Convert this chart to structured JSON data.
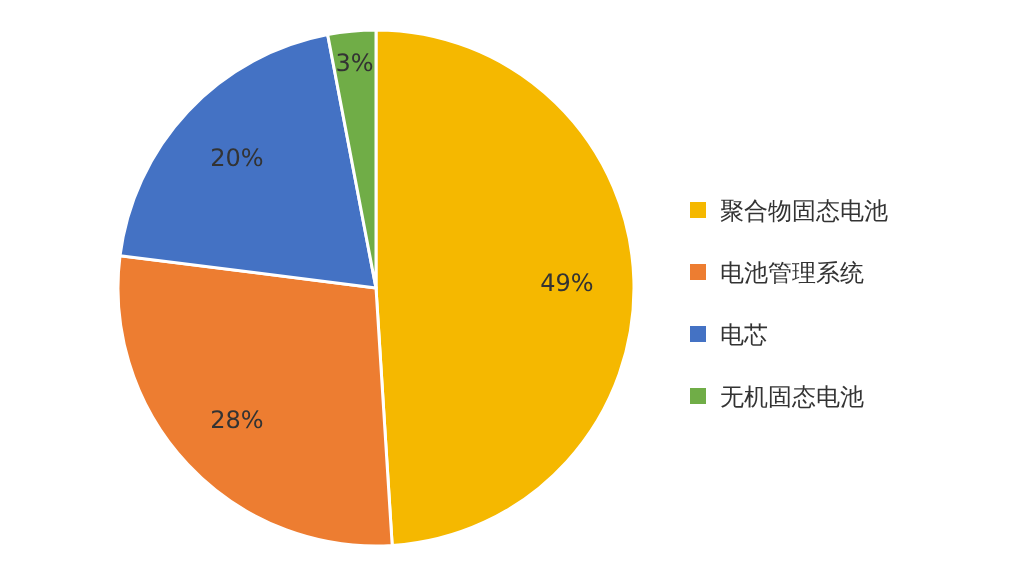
{
  "chart_data": {
    "type": "pie",
    "categories": [
      "聚合物固态电池",
      "电池管理系统",
      "电芯",
      "无机固态电池"
    ],
    "values": [
      49,
      28,
      20,
      3
    ],
    "colors": [
      "#f5b800",
      "#ed7d31",
      "#4472c4",
      "#70ad47"
    ],
    "value_labels": [
      "49%",
      "28%",
      "20%",
      "3%"
    ],
    "legend": "right"
  }
}
